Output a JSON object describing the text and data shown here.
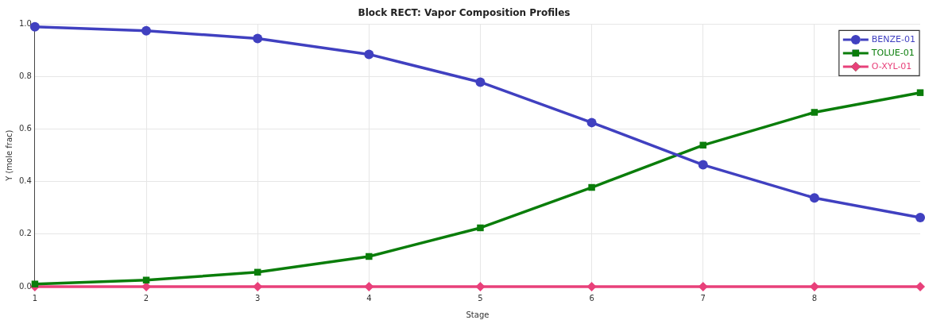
{
  "chart_data": {
    "type": "line",
    "title": "Block RECT: Vapor Composition Profiles",
    "xlabel": "Stage",
    "ylabel": "Y (mole frac)",
    "x": [
      1,
      2,
      3,
      4,
      5,
      6,
      7,
      8,
      8.95
    ],
    "xlim": [
      1,
      8.95
    ],
    "xticks": [
      1,
      2,
      3,
      4,
      5,
      6,
      7,
      8
    ],
    "ylim": [
      0,
      1
    ],
    "yticks": [
      {
        "value": 0,
        "label": "0.0"
      },
      0.2,
      0.4,
      0.6,
      0.8,
      {
        "value": 1,
        "label": "1.0"
      }
    ],
    "series": [
      {
        "name": "BENZE-01",
        "color": "#4040c0",
        "marker": "circle",
        "values": [
          0.99,
          0.975,
          0.945,
          0.885,
          0.779,
          0.625,
          0.464,
          0.338,
          0.263
        ]
      },
      {
        "name": "TOLUE-01",
        "color": "#0a7d0a",
        "marker": "square",
        "values": [
          0.01,
          0.025,
          0.055,
          0.115,
          0.224,
          0.378,
          0.539,
          0.664,
          0.739
        ]
      },
      {
        "name": "O-XYL-01",
        "color": "#e8407a",
        "marker": "diamond",
        "values": [
          0,
          0,
          0,
          0,
          0,
          0,
          0,
          0,
          0
        ]
      }
    ],
    "grid": true,
    "legend": "top right",
    "line_style": "solid"
  }
}
